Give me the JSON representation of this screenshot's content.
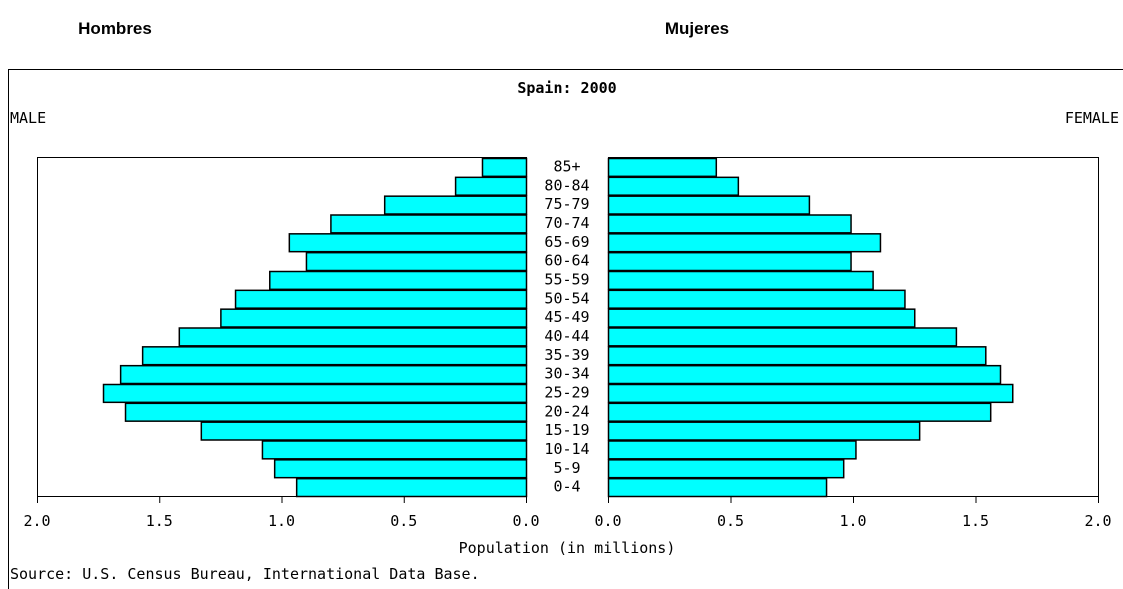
{
  "header": {
    "left": "Hombres",
    "right": "Mujeres"
  },
  "chart_data": {
    "type": "pyramid",
    "title": "Spain: 2000",
    "xlabel": "Population (in millions)",
    "source": "Source: U.S. Census Bureau, International Data Base.",
    "categories": [
      "0-4",
      "5-9",
      "10-14",
      "15-19",
      "20-24",
      "25-29",
      "30-34",
      "35-39",
      "40-44",
      "45-49",
      "50-54",
      "55-59",
      "60-64",
      "65-69",
      "70-74",
      "75-79",
      "80-84",
      "85+"
    ],
    "series": [
      {
        "name": "MALE",
        "color": "#00ffff",
        "values": [
          0.94,
          1.03,
          1.08,
          1.33,
          1.64,
          1.73,
          1.66,
          1.57,
          1.42,
          1.25,
          1.19,
          1.05,
          0.9,
          0.97,
          0.8,
          0.58,
          0.29,
          0.18
        ]
      },
      {
        "name": "FEMALE",
        "color": "#00ffff",
        "values": [
          0.89,
          0.96,
          1.01,
          1.27,
          1.56,
          1.65,
          1.6,
          1.54,
          1.42,
          1.25,
          1.21,
          1.08,
          0.99,
          1.11,
          0.99,
          0.82,
          0.53,
          0.44
        ]
      }
    ],
    "xlim": [
      0,
      2
    ],
    "xticks": [
      {
        "value": 0,
        "label": "0.0"
      },
      {
        "value": 0.5,
        "label": "0.5"
      },
      {
        "value": 1,
        "label": "1.0"
      },
      {
        "value": 1.5,
        "label": "1.5"
      },
      {
        "value": 2,
        "label": "2.0"
      }
    ]
  }
}
